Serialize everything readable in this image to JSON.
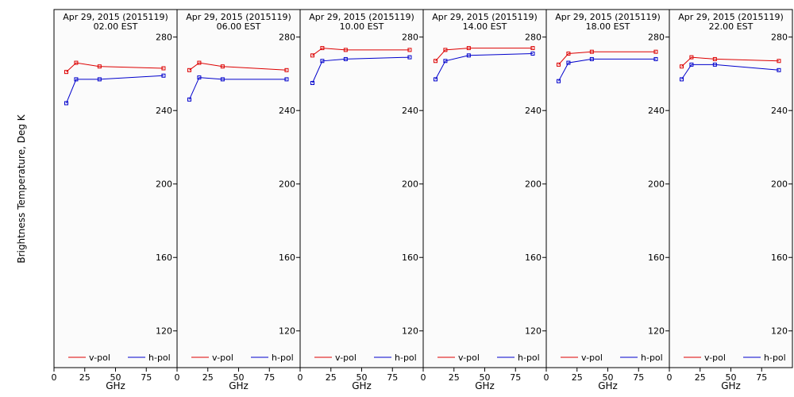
{
  "figure": {
    "ylabel": "Brightness Temperature, Deg K",
    "xlabel": "GHz",
    "background": "#fbfbfb",
    "colors": {
      "v-pol": "#dd0000",
      "h-pol": "#0000cc"
    }
  },
  "chart_data": [
    {
      "type": "line",
      "title": "Apr 29, 2015 (2015119)",
      "subtitle": "02.00 EST",
      "xlabel": "GHz",
      "ylabel": "Brightness Temperature, Deg K",
      "xlim": [
        0,
        100
      ],
      "ylim": [
        100,
        295
      ],
      "xticks": [
        0,
        25,
        50,
        75
      ],
      "yticks": [
        120,
        160,
        200,
        240,
        280
      ],
      "legend": "bottom",
      "x": [
        10,
        18,
        37,
        89
      ],
      "series": [
        {
          "name": "v-pol",
          "color": "#dd0000",
          "values": [
            261,
            266,
            264,
            263
          ]
        },
        {
          "name": "h-pol",
          "color": "#0000cc",
          "values": [
            244,
            257,
            257,
            259
          ]
        }
      ]
    },
    {
      "type": "line",
      "title": "Apr 29, 2015 (2015119)",
      "subtitle": "06.00 EST",
      "xlabel": "GHz",
      "ylabel": "Brightness Temperature, Deg K",
      "xlim": [
        0,
        100
      ],
      "ylim": [
        100,
        295
      ],
      "xticks": [
        0,
        25,
        50,
        75
      ],
      "yticks": [
        120,
        160,
        200,
        240,
        280
      ],
      "legend": "bottom",
      "x": [
        10,
        18,
        37,
        89
      ],
      "series": [
        {
          "name": "v-pol",
          "color": "#dd0000",
          "values": [
            262,
            266,
            264,
            262
          ]
        },
        {
          "name": "h-pol",
          "color": "#0000cc",
          "values": [
            246,
            258,
            257,
            257
          ]
        }
      ]
    },
    {
      "type": "line",
      "title": "Apr 29, 2015 (2015119)",
      "subtitle": "10.00 EST",
      "xlabel": "GHz",
      "ylabel": "Brightness Temperature, Deg K",
      "xlim": [
        0,
        100
      ],
      "ylim": [
        100,
        295
      ],
      "xticks": [
        0,
        25,
        50,
        75
      ],
      "yticks": [
        120,
        160,
        200,
        240,
        280
      ],
      "legend": "bottom",
      "x": [
        10,
        18,
        37,
        89
      ],
      "series": [
        {
          "name": "v-pol",
          "color": "#dd0000",
          "values": [
            270,
            274,
            273,
            273
          ]
        },
        {
          "name": "h-pol",
          "color": "#0000cc",
          "values": [
            255,
            267,
            268,
            269
          ]
        }
      ]
    },
    {
      "type": "line",
      "title": "Apr 29, 2015 (2015119)",
      "subtitle": "14.00 EST",
      "xlabel": "GHz",
      "ylabel": "Brightness Temperature, Deg K",
      "xlim": [
        0,
        100
      ],
      "ylim": [
        100,
        295
      ],
      "xticks": [
        0,
        25,
        50,
        75
      ],
      "yticks": [
        120,
        160,
        200,
        240,
        280
      ],
      "legend": "bottom",
      "x": [
        10,
        18,
        37,
        89
      ],
      "series": [
        {
          "name": "v-pol",
          "color": "#dd0000",
          "values": [
            267,
            273,
            274,
            274
          ]
        },
        {
          "name": "h-pol",
          "color": "#0000cc",
          "values": [
            257,
            267,
            270,
            271
          ]
        }
      ]
    },
    {
      "type": "line",
      "title": "Apr 29, 2015 (2015119)",
      "subtitle": "18.00 EST",
      "xlabel": "GHz",
      "ylabel": "Brightness Temperature, Deg K",
      "xlim": [
        0,
        100
      ],
      "ylim": [
        100,
        295
      ],
      "xticks": [
        0,
        25,
        50,
        75
      ],
      "yticks": [
        120,
        160,
        200,
        240,
        280
      ],
      "legend": "bottom",
      "x": [
        10,
        18,
        37,
        89
      ],
      "series": [
        {
          "name": "v-pol",
          "color": "#dd0000",
          "values": [
            265,
            271,
            272,
            272
          ]
        },
        {
          "name": "h-pol",
          "color": "#0000cc",
          "values": [
            256,
            266,
            268,
            268
          ]
        }
      ]
    },
    {
      "type": "line",
      "title": "Apr 29, 2015 (2015119)",
      "subtitle": "22.00 EST",
      "xlabel": "GHz",
      "ylabel": "Brightness Temperature, Deg K",
      "xlim": [
        0,
        100
      ],
      "ylim": [
        100,
        295
      ],
      "xticks": [
        0,
        25,
        50,
        75
      ],
      "yticks": [
        120,
        160,
        200,
        240,
        280
      ],
      "legend": "bottom",
      "x": [
        10,
        18,
        37,
        89
      ],
      "series": [
        {
          "name": "v-pol",
          "color": "#dd0000",
          "values": [
            264,
            269,
            268,
            267
          ]
        },
        {
          "name": "h-pol",
          "color": "#0000cc",
          "values": [
            257,
            265,
            265,
            262
          ]
        }
      ]
    }
  ]
}
